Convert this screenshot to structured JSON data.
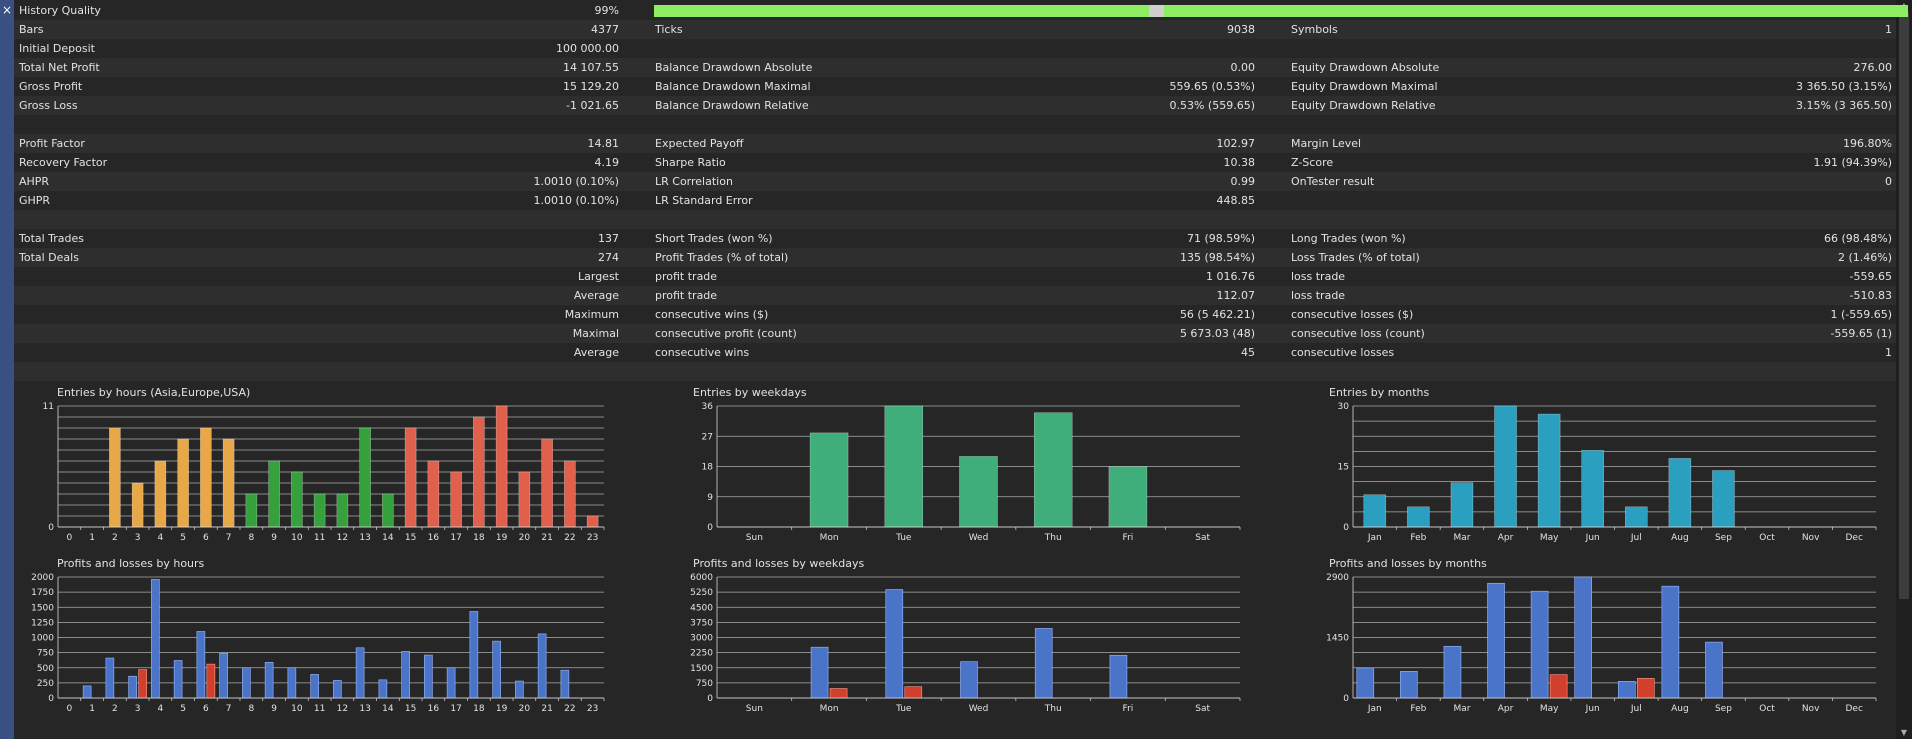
{
  "window": {
    "close_glyph": "×"
  },
  "rows": [
    {
      "l1": "History Quality",
      "v1": "99%",
      "quality_bar": true,
      "quality_fraction": 0.99
    },
    {
      "l1": "Bars",
      "v1": "4377",
      "l2": "Ticks",
      "v2": "9038",
      "l3": "Symbols",
      "v3": "1"
    },
    {
      "l1": "Initial Deposit",
      "v1": "100 000.00"
    },
    {
      "l1": "Total Net Profit",
      "v1": "14 107.55",
      "l2": "Balance Drawdown Absolute",
      "v2": "0.00",
      "l3": "Equity Drawdown Absolute",
      "v3": "276.00"
    },
    {
      "l1": "Gross Profit",
      "v1": "15 129.20",
      "l2": "Balance Drawdown Maximal",
      "v2": "559.65 (0.53%)",
      "l3": "Equity Drawdown Maximal",
      "v3": "3 365.50 (3.15%)"
    },
    {
      "l1": "Gross Loss",
      "v1": "-1 021.65",
      "l2": "Balance Drawdown Relative",
      "v2": "0.53% (559.65)",
      "l3": "Equity Drawdown Relative",
      "v3": "3.15% (3 365.50)"
    },
    {},
    {
      "l1": "Profit Factor",
      "v1": "14.81",
      "l2": "Expected Payoff",
      "v2": "102.97",
      "l3": "Margin Level",
      "v3": "196.80%"
    },
    {
      "l1": "Recovery Factor",
      "v1": "4.19",
      "l2": "Sharpe Ratio",
      "v2": "10.38",
      "l3": "Z-Score",
      "v3": "1.91 (94.39%)"
    },
    {
      "l1": "AHPR",
      "v1": "1.0010 (0.10%)",
      "l2": "LR Correlation",
      "v2": "0.99",
      "l3": "OnTester result",
      "v3": "0"
    },
    {
      "l1": "GHPR",
      "v1": "1.0010 (0.10%)",
      "l2": "LR Standard Error",
      "v2": "448.85"
    },
    {},
    {
      "l1": "Total Trades",
      "v1": "137",
      "l2": "Short Trades (won %)",
      "v2": "71 (98.59%)",
      "l3": "Long Trades (won %)",
      "v3": "66 (98.48%)"
    },
    {
      "l1": "Total Deals",
      "v1": "274",
      "l2": "Profit Trades (% of total)",
      "v2": "135 (98.54%)",
      "l3": "Loss Trades (% of total)",
      "v3": "2 (1.46%)"
    },
    {
      "v1": "Largest",
      "l2": "profit trade",
      "v2": "1 016.76",
      "l3": "loss trade",
      "v3": "-559.65"
    },
    {
      "v1": "Average",
      "l2": "profit trade",
      "v2": "112.07",
      "l3": "loss trade",
      "v3": "-510.83"
    },
    {
      "v1": "Maximum",
      "l2": "consecutive wins ($)",
      "v2": "56 (5 462.21)",
      "l3": "consecutive losses ($)",
      "v3": "1 (-559.65)"
    },
    {
      "v1": "Maximal",
      "l2": "consecutive profit (count)",
      "v2": "5 673.03 (48)",
      "l3": "consecutive loss (count)",
      "v3": "-559.65 (1)"
    },
    {
      "v1": "Average",
      "l2": "consecutive wins",
      "v2": "45",
      "l3": "consecutive losses",
      "v3": "1"
    },
    {}
  ],
  "colors": {
    "asia": "#e8a848",
    "europe": "#36a03c",
    "usa": "#e0604c",
    "weekday": "#3fae7a",
    "month": "#2a9fc0",
    "profit": "#4a74c8",
    "loss": "#d0402c"
  },
  "chart_data": [
    {
      "id": "entries-hours",
      "type": "bar",
      "title": "Entries by hours (Asia,Europe,USA)",
      "categories": [
        "0",
        "1",
        "2",
        "3",
        "4",
        "5",
        "6",
        "7",
        "8",
        "9",
        "10",
        "11",
        "12",
        "13",
        "14",
        "15",
        "16",
        "17",
        "18",
        "19",
        "20",
        "21",
        "22",
        "23"
      ],
      "yticks": [
        "0",
        "11"
      ],
      "ylim": [
        0,
        11
      ],
      "xlabel": "",
      "ylabel": "",
      "series": [
        {
          "values": [
            0,
            0,
            9,
            4,
            6,
            8,
            9,
            8,
            3,
            6,
            5,
            3,
            3,
            9,
            3,
            9,
            6,
            5,
            10,
            11,
            5,
            8,
            6,
            1
          ]
        }
      ]
    },
    {
      "id": "entries-weekdays",
      "type": "bar",
      "title": "Entries by weekdays",
      "categories": [
        "Sun",
        "Mon",
        "Tue",
        "Wed",
        "Thu",
        "Fri",
        "Sat"
      ],
      "yticks": [
        "0",
        "9",
        "18",
        "27",
        "36"
      ],
      "ylim": [
        0,
        36
      ],
      "xlabel": "",
      "ylabel": "",
      "series": [
        {
          "values": [
            0,
            28,
            36,
            21,
            34,
            18,
            0
          ]
        }
      ]
    },
    {
      "id": "entries-months",
      "type": "bar",
      "title": "Entries by months",
      "categories": [
        "Jan",
        "Feb",
        "Mar",
        "Apr",
        "May",
        "Jun",
        "Jul",
        "Aug",
        "Sep",
        "Oct",
        "Nov",
        "Dec"
      ],
      "yticks": [
        "0",
        "15",
        "30"
      ],
      "ylim": [
        0,
        30
      ],
      "xlabel": "",
      "ylabel": "",
      "series": [
        {
          "values": [
            8,
            5,
            11,
            30,
            28,
            19,
            5,
            17,
            14,
            0,
            0,
            0
          ]
        }
      ]
    },
    {
      "id": "pl-hours",
      "type": "bar",
      "title": "Profits and losses by hours",
      "categories": [
        "0",
        "1",
        "2",
        "3",
        "4",
        "5",
        "6",
        "7",
        "8",
        "9",
        "10",
        "11",
        "12",
        "13",
        "14",
        "15",
        "16",
        "17",
        "18",
        "19",
        "20",
        "21",
        "22",
        "23"
      ],
      "yticks": [
        "0",
        "250",
        "500",
        "750",
        "1000",
        "1250",
        "1500",
        "1750",
        "2000"
      ],
      "ylim": [
        0,
        2000
      ],
      "xlabel": "",
      "ylabel": "",
      "series": [
        {
          "values": [
            0,
            200,
            660,
            360,
            1960,
            620,
            1100,
            740,
            500,
            590,
            500,
            390,
            290,
            830,
            300,
            770,
            710,
            500,
            1430,
            940,
            280,
            1060,
            460,
            0
          ]
        },
        {
          "values": [
            0,
            0,
            0,
            470,
            0,
            0,
            560,
            0,
            0,
            0,
            0,
            0,
            0,
            0,
            0,
            0,
            0,
            0,
            0,
            0,
            0,
            0,
            0,
            0
          ]
        }
      ]
    },
    {
      "id": "pl-weekdays",
      "type": "bar",
      "title": "Profits and losses by weekdays",
      "categories": [
        "Sun",
        "Mon",
        "Tue",
        "Wed",
        "Thu",
        "Fri",
        "Sat"
      ],
      "yticks": [
        "0",
        "750",
        "1500",
        "2250",
        "3000",
        "3750",
        "4500",
        "5250",
        "6000"
      ],
      "ylim": [
        0,
        6000
      ],
      "xlabel": "",
      "ylabel": "",
      "series": [
        {
          "values": [
            0,
            2520,
            5380,
            1800,
            3450,
            2120,
            0
          ]
        },
        {
          "values": [
            0,
            470,
            560,
            0,
            0,
            0,
            0
          ]
        }
      ]
    },
    {
      "id": "pl-months",
      "type": "bar",
      "title": "Profits and losses by months",
      "categories": [
        "Jan",
        "Feb",
        "Mar",
        "Apr",
        "May",
        "Jun",
        "Jul",
        "Aug",
        "Sep",
        "Oct",
        "Nov",
        "Dec"
      ],
      "yticks": [
        "0",
        "1450",
        "2900"
      ],
      "ylim": [
        0,
        2900
      ],
      "xlabel": "",
      "ylabel": "",
      "series": [
        {
          "values": [
            720,
            640,
            1240,
            2750,
            2560,
            2900,
            400,
            2680,
            1340,
            0,
            0,
            0
          ]
        },
        {
          "values": [
            0,
            0,
            0,
            0,
            560,
            0,
            470,
            0,
            0,
            0,
            0,
            0
          ]
        }
      ]
    }
  ]
}
